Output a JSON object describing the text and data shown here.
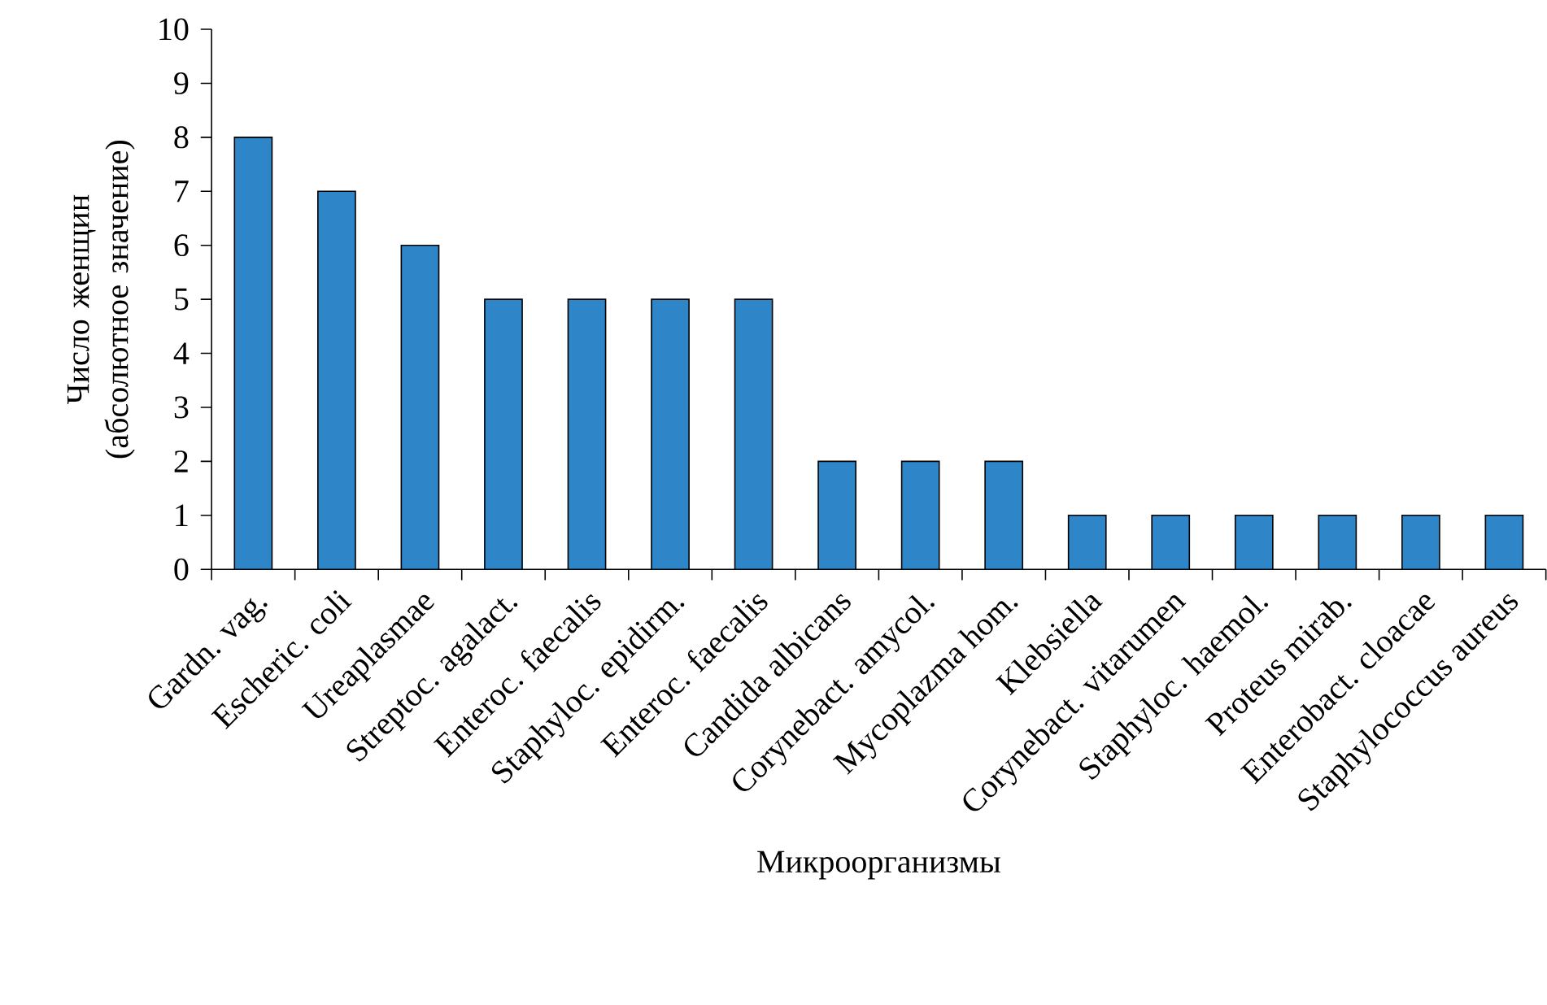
{
  "chart_data": {
    "type": "bar",
    "xlabel": "Микроорганизмы",
    "ylabel": "Число женщин (абсолютное значение)",
    "categories": [
      "Gardn. vag.",
      "Escheric. coli",
      "Ureaplasmae",
      "Streptoc. agalact.",
      "Enteroc. faecalis",
      "Staphyloc. epidirm.",
      "Enteroc. faecalis",
      "Candida albicans",
      "Corynebact. amycol.",
      "Mycoplazma hom.",
      "Klebsiella",
      "Corynebact. vitarumen",
      "Staphyloc. haemol.",
      "Proteus mirab.",
      "Enterobact. cloacae",
      "Staphylococcus aureus"
    ],
    "values": [
      8,
      7,
      6,
      5,
      5,
      5,
      5,
      2,
      2,
      2,
      1,
      1,
      1,
      1,
      1,
      1
    ],
    "color": "#2e86c8",
    "ylim": [
      0,
      10
    ],
    "yticks": [
      0,
      1,
      2,
      3,
      4,
      5,
      6,
      7,
      8,
      9,
      10
    ]
  }
}
